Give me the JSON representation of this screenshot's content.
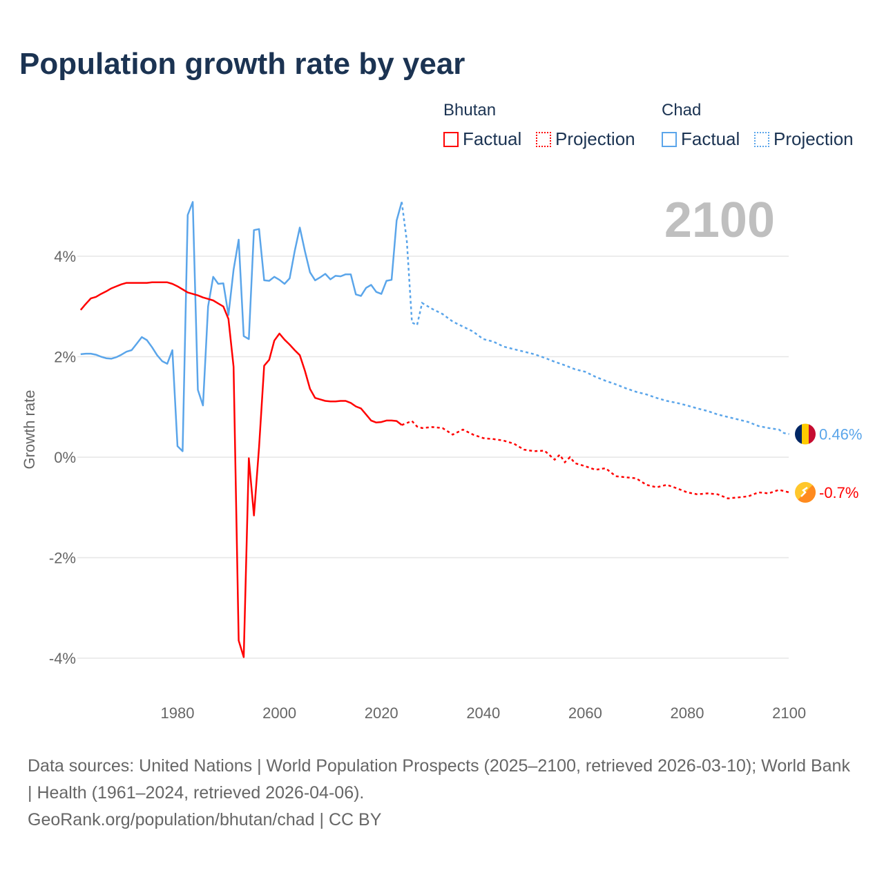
{
  "chart_data": {
    "type": "line",
    "title": "Population growth rate by year",
    "ylabel": "Growth rate",
    "xlabel": "",
    "xlim": [
      1961,
      2100
    ],
    "ylim": [
      -4.6,
      5.5
    ],
    "xticks": [
      "1980",
      "2000",
      "2020",
      "2040",
      "2060",
      "2080",
      "2100"
    ],
    "yticks": [
      {
        "v": 4,
        "label": "4%"
      },
      {
        "v": 2,
        "label": "2%"
      },
      {
        "v": 0,
        "label": "0%"
      },
      {
        "v": -2,
        "label": "-2%"
      },
      {
        "v": -4,
        "label": "-4%"
      }
    ],
    "year_label": "2100",
    "legend": {
      "countries": [
        "Bhutan",
        "Chad"
      ],
      "factual": "Factual",
      "projection": "Projection"
    },
    "series": [
      {
        "name": "Bhutan",
        "color": "#ff0000",
        "end_label": "-0.7%",
        "factual": {
          "x": [
            1961,
            1962,
            1963,
            1964,
            1965,
            1966,
            1967,
            1968,
            1969,
            1970,
            1971,
            1972,
            1973,
            1974,
            1975,
            1976,
            1977,
            1978,
            1979,
            1980,
            1981,
            1982,
            1983,
            1984,
            1985,
            1986,
            1987,
            1988,
            1989,
            1990,
            1991,
            1992,
            1993,
            1994,
            1995,
            1996,
            1997,
            1998,
            1999,
            2000,
            2001,
            2002,
            2003,
            2004,
            2005,
            2006,
            2007,
            2008,
            2009,
            2010,
            2011,
            2012,
            2013,
            2014,
            2015,
            2016,
            2017,
            2018,
            2019,
            2020,
            2021,
            2022,
            2023,
            2024
          ],
          "y": [
            2.93,
            3.05,
            3.16,
            3.19,
            3.25,
            3.3,
            3.36,
            3.4,
            3.44,
            3.47,
            3.47,
            3.47,
            3.47,
            3.47,
            3.48,
            3.48,
            3.48,
            3.48,
            3.45,
            3.4,
            3.34,
            3.28,
            3.25,
            3.22,
            3.18,
            3.15,
            3.12,
            3.06,
            3.0,
            2.75,
            1.8,
            -3.65,
            -3.98,
            -0.02,
            -1.16,
            0.2,
            1.82,
            1.94,
            2.32,
            2.46,
            2.34,
            2.24,
            2.13,
            2.03,
            1.72,
            1.36,
            1.18,
            1.15,
            1.12,
            1.11,
            1.11,
            1.12,
            1.12,
            1.08,
            1.01,
            0.97,
            0.85,
            0.73,
            0.69,
            0.7,
            0.73,
            0.73,
            0.72,
            0.64
          ]
        },
        "projection": {
          "x": [
            2024,
            2025,
            2026,
            2027,
            2028,
            2030,
            2032,
            2034,
            2036,
            2038,
            2040,
            2042,
            2044,
            2046,
            2048,
            2050,
            2052,
            2054,
            2055,
            2056,
            2057,
            2058,
            2060,
            2062,
            2064,
            2066,
            2068,
            2070,
            2072,
            2074,
            2076,
            2078,
            2080,
            2082,
            2084,
            2086,
            2088,
            2090,
            2092,
            2094,
            2096,
            2098,
            2100
          ],
          "y": [
            0.64,
            0.68,
            0.72,
            0.61,
            0.58,
            0.6,
            0.58,
            0.45,
            0.55,
            0.45,
            0.38,
            0.36,
            0.33,
            0.27,
            0.15,
            0.12,
            0.13,
            -0.05,
            0.05,
            -0.1,
            0.0,
            -0.12,
            -0.18,
            -0.25,
            -0.22,
            -0.38,
            -0.4,
            -0.42,
            -0.55,
            -0.6,
            -0.55,
            -0.62,
            -0.7,
            -0.74,
            -0.72,
            -0.74,
            -0.82,
            -0.8,
            -0.78,
            -0.7,
            -0.72,
            -0.65,
            -0.7
          ]
        }
      },
      {
        "name": "Chad",
        "color": "#5aa5ea",
        "end_label": "0.46%",
        "factual": {
          "x": [
            1961,
            1962,
            1963,
            1964,
            1965,
            1966,
            1967,
            1968,
            1969,
            1970,
            1971,
            1972,
            1973,
            1974,
            1975,
            1976,
            1977,
            1978,
            1979,
            1980,
            1981,
            1982,
            1983,
            1984,
            1985,
            1986,
            1987,
            1988,
            1989,
            1990,
            1991,
            1992,
            1993,
            1994,
            1995,
            1996,
            1997,
            1998,
            1999,
            2000,
            2001,
            2002,
            2003,
            2004,
            2005,
            2006,
            2007,
            2008,
            2009,
            2010,
            2011,
            2012,
            2013,
            2014,
            2015,
            2016,
            2017,
            2018,
            2019,
            2020,
            2021,
            2022,
            2023,
            2024
          ],
          "y": [
            2.05,
            2.06,
            2.06,
            2.04,
            2.0,
            1.97,
            1.96,
            1.99,
            2.04,
            2.1,
            2.13,
            2.26,
            2.39,
            2.33,
            2.19,
            2.03,
            1.91,
            1.86,
            2.13,
            0.22,
            0.12,
            4.82,
            5.08,
            1.34,
            1.03,
            3.0,
            3.59,
            3.45,
            3.46,
            2.83,
            3.73,
            4.33,
            2.41,
            2.35,
            4.52,
            4.54,
            3.52,
            3.51,
            3.59,
            3.53,
            3.45,
            3.56,
            4.1,
            4.57,
            4.1,
            3.68,
            3.52,
            3.58,
            3.65,
            3.54,
            3.61,
            3.6,
            3.64,
            3.64,
            3.24,
            3.21,
            3.37,
            3.43,
            3.29,
            3.25,
            3.51,
            3.53,
            4.71,
            5.08
          ]
        },
        "projection": {
          "x": [
            2024,
            2025,
            2026,
            2027,
            2028,
            2030,
            2032,
            2034,
            2036,
            2038,
            2040,
            2042,
            2044,
            2046,
            2048,
            2050,
            2052,
            2054,
            2056,
            2058,
            2060,
            2062,
            2064,
            2066,
            2068,
            2070,
            2072,
            2074,
            2076,
            2078,
            2080,
            2082,
            2084,
            2086,
            2088,
            2090,
            2092,
            2094,
            2096,
            2098,
            2099,
            2100
          ],
          "y": [
            5.08,
            4.3,
            2.68,
            2.63,
            3.07,
            2.95,
            2.85,
            2.7,
            2.6,
            2.5,
            2.35,
            2.3,
            2.2,
            2.15,
            2.1,
            2.05,
            1.98,
            1.9,
            1.83,
            1.75,
            1.7,
            1.6,
            1.52,
            1.45,
            1.37,
            1.3,
            1.25,
            1.18,
            1.12,
            1.08,
            1.03,
            0.97,
            0.92,
            0.85,
            0.8,
            0.75,
            0.7,
            0.62,
            0.58,
            0.55,
            0.48,
            0.46
          ]
        }
      }
    ]
  },
  "footer": {
    "line1": "Data sources: United Nations | World Population Prospects (2025–2100, retrieved 2026-03-10); World Bank | Health (1961–2024, retrieved 2026-04-06).",
    "line2": "GeoRank.org/population/bhutan/chad | CC BY"
  }
}
